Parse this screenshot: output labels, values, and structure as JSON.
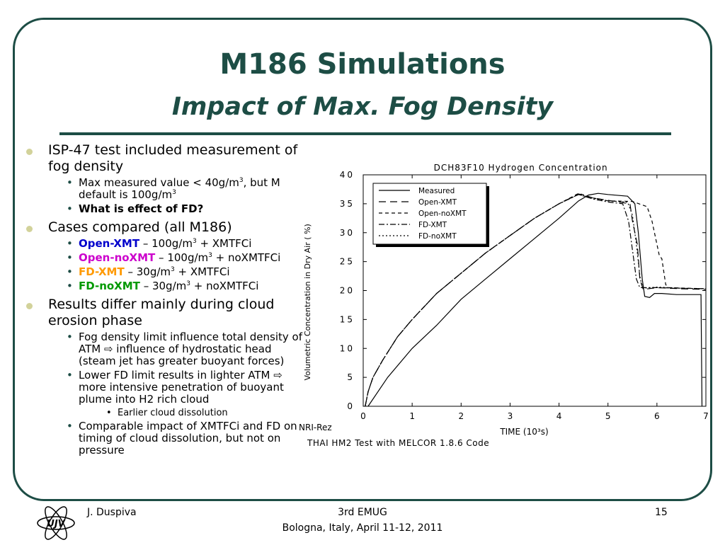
{
  "title": "M186 Simulations",
  "subtitle": "Impact of Max. Fog Density",
  "bullets": {
    "b1": "ISP-47 test included measurement of fog density",
    "b1_s1_a": "Max measured value < 40g/m",
    "b1_s1_b": ", but M",
    "b1_s1_c": "default is 100g/m",
    "b1_s2": "What is effect of FD?",
    "b2": "Cases compared (all M186)",
    "cases": [
      {
        "name": "Open-XMT",
        "pre": " – 100g/m",
        "post": " + XMTFCi"
      },
      {
        "name": "Open-noXMT",
        "pre": " – 100g/m",
        "post": " + noXMTFCi"
      },
      {
        "name": "FD-XMT",
        "pre": " – 30g/m",
        "post": " + XMTFCi"
      },
      {
        "name": "FD-noXMT",
        "pre": " – 30g/m",
        "post": " + noXMTFCi"
      }
    ],
    "sup3": "3",
    "b3": "Results differ mainly during cloud erosion phase",
    "b3_s1": "Fog density limit influence total density of ATM ⇨ influence of hydrostatic head (steam jet has greater buoyant forces)",
    "b3_s2": "Lower FD limit results in lighter ATM ⇨ more intensive penetration of buoyant plume into H2 rich cloud",
    "b3_s2_s1": "Earlier cloud dissolution",
    "b3_s3": "Comparable impact of XMTFCi and FD on timing of cloud dissolution, but not on pressure"
  },
  "footer": {
    "author": "J. Duspiva",
    "event": "3rd EMUG",
    "venue": "Bologna, Italy, April 11-12, 2011",
    "page": "15",
    "logo_text": "ÚJV"
  },
  "colors": {
    "theme": "#1d4d45",
    "bullet": "#d2d29a"
  },
  "chart_data": {
    "type": "line",
    "title": "DCH83F10  Hydrogen  Concentration",
    "xlabel": "TIME  (10³s)",
    "ylabel": "Volumetric  Concentration  in  Dry  Air  ( %)",
    "xlim": [
      0,
      7
    ],
    "ylim": [
      0,
      40
    ],
    "xticks": [
      0,
      1,
      2,
      3,
      4,
      5,
      6,
      7
    ],
    "yticks": [
      0,
      5,
      10,
      15,
      20,
      25,
      30,
      35,
      40
    ],
    "legend": "top-left",
    "footer_left": "NRI-Rez",
    "footer_caption": "THAI  HM2  Test  with  MELCOR  1.8.6  Code",
    "series": [
      {
        "name": "Measured",
        "dash": "",
        "points": [
          [
            0.1,
            0
          ],
          [
            0.5,
            5
          ],
          [
            1,
            10
          ],
          [
            1.5,
            14
          ],
          [
            2,
            18.5
          ],
          [
            2.5,
            22
          ],
          [
            3,
            25.5
          ],
          [
            3.5,
            29
          ],
          [
            4,
            32.5
          ],
          [
            4.4,
            35.5
          ],
          [
            4.6,
            36.5
          ],
          [
            4.8,
            36.8
          ],
          [
            5,
            36.6
          ],
          [
            5.4,
            36.3
          ],
          [
            5.55,
            35
          ],
          [
            5.62,
            30
          ],
          [
            5.7,
            22
          ],
          [
            5.75,
            19
          ],
          [
            5.85,
            18.8
          ],
          [
            5.95,
            19.5
          ],
          [
            6.1,
            19.5
          ],
          [
            6.4,
            19.3
          ],
          [
            6.9,
            19.3
          ],
          [
            6.92,
            0
          ]
        ]
      },
      {
        "name": "Open-XMT",
        "dash": "10,6",
        "points": [
          [
            0.04,
            0
          ],
          [
            0.1,
            2.5
          ],
          [
            0.2,
            5
          ],
          [
            0.4,
            8
          ],
          [
            0.7,
            12
          ],
          [
            1,
            15
          ],
          [
            1.5,
            19.5
          ],
          [
            2,
            23
          ],
          [
            2.5,
            26.5
          ],
          [
            3,
            29.5
          ],
          [
            3.5,
            32.5
          ],
          [
            4,
            35
          ],
          [
            4.4,
            36.7
          ],
          [
            4.7,
            36
          ],
          [
            5,
            35.6
          ],
          [
            5.45,
            35
          ],
          [
            5.5,
            32
          ],
          [
            5.6,
            28
          ],
          [
            5.65,
            22
          ],
          [
            5.72,
            20.2
          ],
          [
            6,
            20.5
          ],
          [
            6.5,
            20.3
          ],
          [
            7,
            20.2
          ]
        ]
      },
      {
        "name": "Open-noXMT",
        "dash": "5,4",
        "points": [
          [
            0.04,
            0
          ],
          [
            0.1,
            2.5
          ],
          [
            0.2,
            5
          ],
          [
            0.4,
            8
          ],
          [
            0.7,
            12
          ],
          [
            1,
            15
          ],
          [
            1.5,
            19.5
          ],
          [
            2,
            23
          ],
          [
            2.5,
            26.5
          ],
          [
            3,
            29.5
          ],
          [
            3.5,
            32.5
          ],
          [
            4,
            35
          ],
          [
            4.4,
            36.8
          ],
          [
            4.7,
            36
          ],
          [
            5,
            35.5
          ],
          [
            5.5,
            35.4
          ],
          [
            5.8,
            34.5
          ],
          [
            5.9,
            32
          ],
          [
            6.05,
            26
          ],
          [
            6.1,
            25.5
          ],
          [
            6.18,
            21
          ],
          [
            6.25,
            20.5
          ],
          [
            7,
            20.3
          ]
        ]
      },
      {
        "name": "FD-XMT",
        "dash": "8,3,2,3",
        "points": [
          [
            0.04,
            0
          ],
          [
            0.1,
            2.5
          ],
          [
            0.2,
            5
          ],
          [
            0.4,
            8
          ],
          [
            0.7,
            12
          ],
          [
            1,
            15
          ],
          [
            1.5,
            19.5
          ],
          [
            2,
            23
          ],
          [
            2.5,
            26.5
          ],
          [
            3,
            29.5
          ],
          [
            3.5,
            32.5
          ],
          [
            4,
            35
          ],
          [
            4.4,
            36.6
          ],
          [
            4.7,
            35.8
          ],
          [
            5,
            35.3
          ],
          [
            5.3,
            35
          ],
          [
            5.42,
            32
          ],
          [
            5.5,
            27
          ],
          [
            5.58,
            22
          ],
          [
            5.65,
            20.5
          ],
          [
            6,
            20.5
          ],
          [
            6.5,
            20.4
          ],
          [
            7,
            20.3
          ]
        ]
      },
      {
        "name": "FD-noXMT",
        "dash": "2,3",
        "points": [
          [
            0.04,
            0
          ],
          [
            0.1,
            2.5
          ],
          [
            0.2,
            5
          ],
          [
            0.4,
            8
          ],
          [
            0.7,
            12
          ],
          [
            1,
            15
          ],
          [
            1.5,
            19.5
          ],
          [
            2,
            23
          ],
          [
            2.5,
            26.5
          ],
          [
            3,
            29.5
          ],
          [
            3.5,
            32.5
          ],
          [
            4,
            35
          ],
          [
            4.4,
            36.6
          ],
          [
            4.7,
            35.9
          ],
          [
            5,
            35.5
          ],
          [
            5.4,
            35.3
          ],
          [
            5.5,
            33
          ],
          [
            5.58,
            28
          ],
          [
            5.66,
            22
          ],
          [
            5.72,
            20.4
          ],
          [
            6,
            20.6
          ],
          [
            6.5,
            20.4
          ],
          [
            7,
            20.3
          ]
        ]
      }
    ]
  }
}
